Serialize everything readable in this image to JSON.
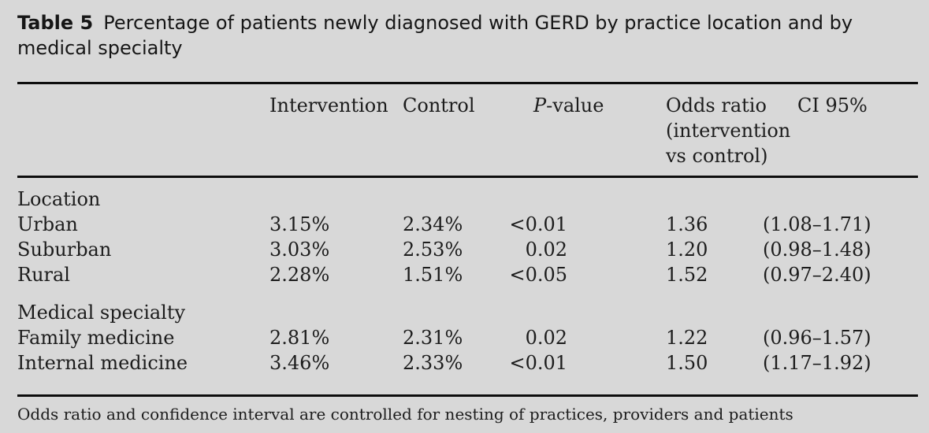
{
  "colors": {
    "background": "#d8d8d8",
    "text": "#1c1c1c",
    "rule": "#0d0d0d"
  },
  "title": {
    "label": "Table 5",
    "text": "Percentage of patients newly diagnosed with GERD by practice location and by\nmedical specialty"
  },
  "table": {
    "columns": {
      "intervention": "Intervention",
      "control": "Control",
      "pvalue_italic": "P",
      "pvalue_rest": "-value",
      "odds_ratio": "Odds ratio (intervention vs control)",
      "ci": "CI 95%"
    },
    "rows": [
      {
        "label": "Location",
        "type": "section"
      },
      {
        "label": "Urban",
        "intervention": "3.15%",
        "control": "2.34%",
        "pvalue": "<0.01",
        "odds_ratio": "1.36",
        "ci": "(1.08–1.71)"
      },
      {
        "label": "Suburban",
        "intervention": "3.03%",
        "control": "2.53%",
        "pvalue": "0.02",
        "odds_ratio": "1.20",
        "ci": "(0.98–1.48)"
      },
      {
        "label": "Rural",
        "intervention": "2.28%",
        "control": "1.51%",
        "pvalue": "<0.05",
        "odds_ratio": "1.52",
        "ci": "(0.97–2.40)"
      },
      {
        "label": "Medical specialty",
        "type": "section"
      },
      {
        "label": "Family medicine",
        "intervention": "2.81%",
        "control": "2.31%",
        "pvalue": "0.02",
        "odds_ratio": "1.22",
        "ci": "(0.96–1.57)"
      },
      {
        "label": "Internal medicine",
        "intervention": "3.46%",
        "control": "2.33%",
        "pvalue": "<0.01",
        "odds_ratio": "1.50",
        "ci": "(1.17–1.92)"
      }
    ]
  },
  "footnote": "Odds ratio and confidence interval are controlled for nesting of practices, providers and patients"
}
